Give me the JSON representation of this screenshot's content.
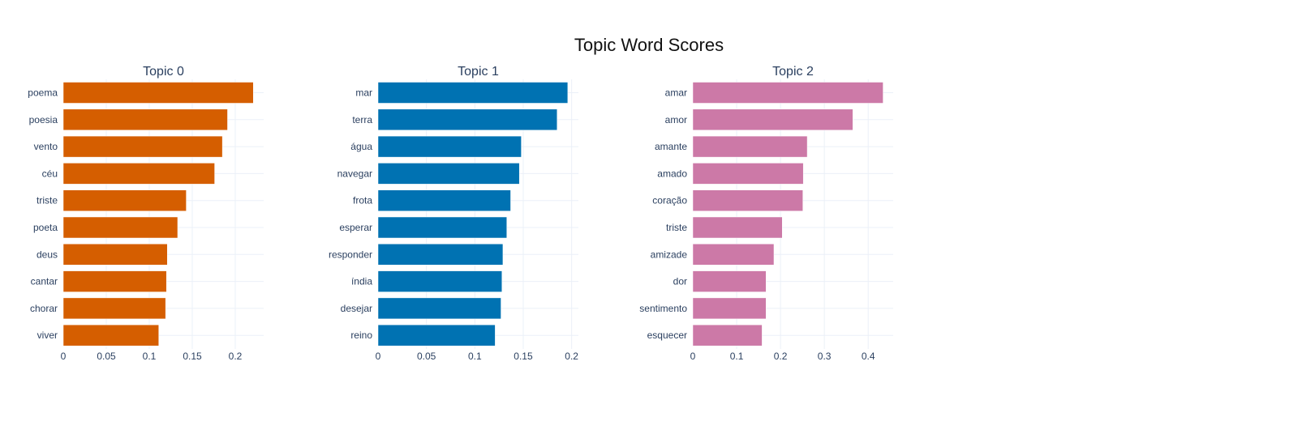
{
  "figure_title": "Topic Word Scores",
  "chart_data": [
    {
      "type": "bar",
      "orientation": "horizontal",
      "title": "Topic 0",
      "color": "#D55E00",
      "categories": [
        "poema",
        "poesia",
        "vento",
        "céu",
        "triste",
        "poeta",
        "deus",
        "cantar",
        "chorar",
        "viver"
      ],
      "values": [
        0.221,
        0.191,
        0.185,
        0.176,
        0.143,
        0.133,
        0.121,
        0.12,
        0.119,
        0.111
      ],
      "xlim": [
        0,
        0.233
      ],
      "xticks": [
        0,
        0.05,
        0.1,
        0.15,
        0.2
      ],
      "xtick_labels": [
        "0",
        "0.05",
        "0.1",
        "0.15",
        "0.2"
      ],
      "grid": true
    },
    {
      "type": "bar",
      "orientation": "horizontal",
      "title": "Topic 1",
      "color": "#0072B2",
      "categories": [
        "mar",
        "terra",
        "água",
        "navegar",
        "frota",
        "esperar",
        "responder",
        "índia",
        "desejar",
        "reino"
      ],
      "values": [
        0.196,
        0.185,
        0.148,
        0.146,
        0.137,
        0.133,
        0.129,
        0.128,
        0.127,
        0.121
      ],
      "xlim": [
        0,
        0.207
      ],
      "xticks": [
        0,
        0.05,
        0.1,
        0.15,
        0.2
      ],
      "xtick_labels": [
        "0",
        "0.05",
        "0.1",
        "0.15",
        "0.2"
      ],
      "grid": true
    },
    {
      "type": "bar",
      "orientation": "horizontal",
      "title": "Topic 2",
      "color": "#CC79A7",
      "categories": [
        "amar",
        "amor",
        "amante",
        "amado",
        "coração",
        "triste",
        "amizade",
        "dor",
        "sentimento",
        "esquecer"
      ],
      "values": [
        0.434,
        0.365,
        0.261,
        0.252,
        0.251,
        0.204,
        0.185,
        0.167,
        0.167,
        0.158
      ],
      "xlim": [
        0,
        0.457
      ],
      "xticks": [
        0,
        0.1,
        0.2,
        0.3,
        0.4
      ],
      "xtick_labels": [
        "0",
        "0.1",
        "0.2",
        "0.3",
        "0.4"
      ],
      "grid": true
    }
  ]
}
